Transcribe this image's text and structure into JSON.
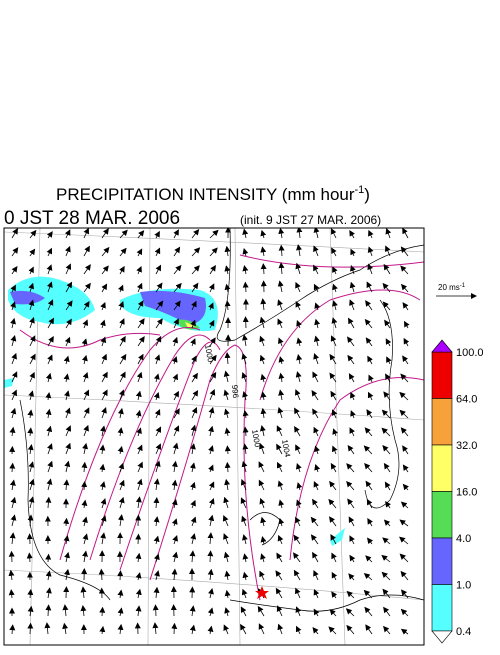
{
  "header": {
    "title": {
      "main": "PRECIPITATION INTENSITY (mm hour",
      "sup": "-1",
      "end": ")"
    },
    "valid_time": "0 JST 28 MAR. 2006",
    "init_time": "(init. 9 JST 27 MAR. 2006)"
  },
  "wind_scale": {
    "main": "20 ms",
    "sup": "-1"
  },
  "contour_labels": [
    "1000",
    "996",
    "1000",
    "1004"
  ],
  "colorbar": {
    "levels": [
      {
        "label": "100.0",
        "color": "#ee0000"
      },
      {
        "label": "64.0",
        "color": "#f7a13a"
      },
      {
        "label": "32.0",
        "color": "#ffff66"
      },
      {
        "label": "16.0",
        "color": "#55dd55"
      },
      {
        "label": "4.0",
        "color": "#6666ff"
      },
      {
        "label": "1.0",
        "color": "#55ffff"
      },
      {
        "label": "0.4",
        "color": "#ffffff"
      }
    ]
  }
}
